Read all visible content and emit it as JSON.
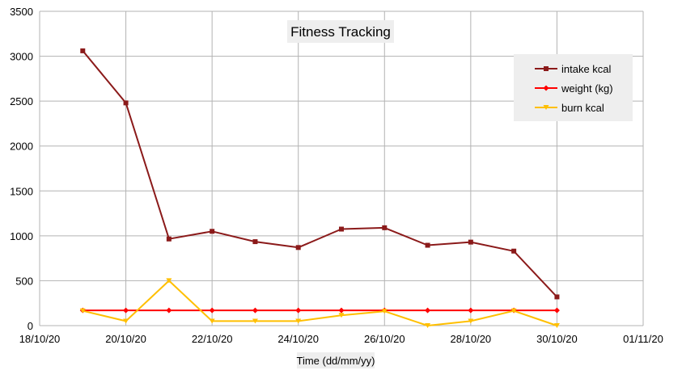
{
  "chart_data": {
    "type": "line",
    "title": "Fitness Tracking",
    "xlabel": "Time (dd/mm/yy)",
    "ylabel": "",
    "ylim": [
      0,
      3500
    ],
    "yticks": [
      0,
      500,
      1000,
      1500,
      2000,
      2500,
      3000,
      3500
    ],
    "xlim": [
      "2020-10-18",
      "2020-11-01"
    ],
    "xtick_labels": [
      "18/10/20",
      "20/10/20",
      "22/10/20",
      "24/10/20",
      "26/10/20",
      "28/10/20",
      "30/10/20",
      "01/11/20"
    ],
    "x": [
      "2020-10-19",
      "2020-10-20",
      "2020-10-21",
      "2020-10-22",
      "2020-10-23",
      "2020-10-24",
      "2020-10-25",
      "2020-10-26",
      "2020-10-27",
      "2020-10-28",
      "2020-10-29",
      "2020-10-30"
    ],
    "grid": true,
    "legend_position": "top-right",
    "series": [
      {
        "name": "intake kcal",
        "color": "#8b1a1a",
        "marker": "square",
        "values": [
          3060,
          2480,
          965,
          1050,
          935,
          870,
          1075,
          1090,
          895,
          930,
          830,
          320
        ]
      },
      {
        "name": "weight (kg)",
        "color": "#ff0000",
        "marker": "diamond",
        "values": [
          170,
          170,
          170,
          170,
          170,
          170,
          170,
          170,
          170,
          170,
          170,
          170
        ]
      },
      {
        "name": "burn kcal",
        "color": "#ffbf00",
        "marker": "triangle-down",
        "values": [
          165,
          50,
          500,
          50,
          50,
          50,
          115,
          160,
          0,
          50,
          165,
          0
        ]
      }
    ]
  }
}
